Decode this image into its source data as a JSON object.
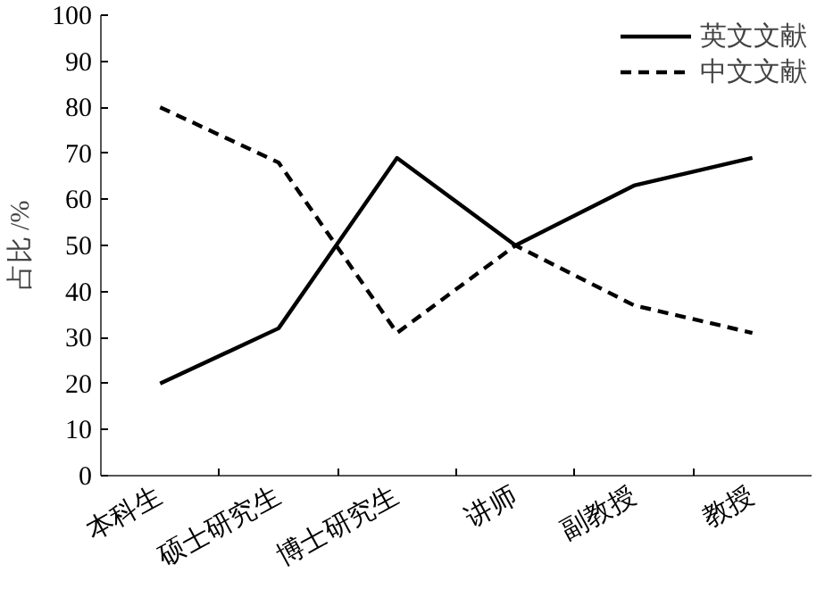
{
  "chart_data": {
    "type": "line",
    "ylabel": "占比 /%",
    "categories": [
      "本科生",
      "硕士研究生",
      "博士研究生",
      "讲师",
      "副教授",
      "教授"
    ],
    "series": [
      {
        "name": "英文文献",
        "color": "#000000",
        "line_style": "solid",
        "values": [
          20,
          32,
          69,
          50,
          63,
          69
        ]
      },
      {
        "name": "中文文献",
        "color": "#000000",
        "line_style": "dashed",
        "values": [
          80,
          68,
          31,
          50,
          37,
          31
        ]
      }
    ],
    "ylim": [
      0,
      100
    ],
    "yticks": [
      0,
      10,
      20,
      30,
      40,
      50,
      60,
      70,
      80,
      90,
      100
    ],
    "grid": false,
    "legend": "top right",
    "marker": "none"
  }
}
